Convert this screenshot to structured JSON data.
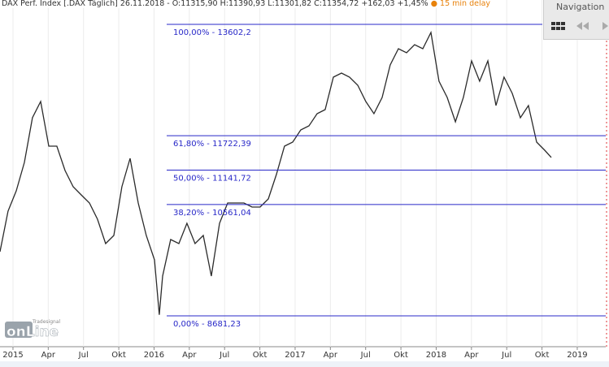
{
  "chart_data": {
    "type": "line",
    "title": "DAX Perf. Index [.DAX Täglich] 26.11.2018 - O:11315,90 H:11390,93 L:11301,82 C:11354,72 +162,03 +1,45%",
    "subtitle": "15 min delay",
    "navigation": "Navigation",
    "brand": "Tradesignal",
    "logo": "onLine",
    "color": "#2b2b2b",
    "level_color": "#2828c8",
    "grid": true,
    "x": [
      2014.908,
      2014.965,
      2015.023,
      2015.081,
      2015.138,
      2015.196,
      2015.254,
      2015.311,
      2015.369,
      2015.427,
      2015.484,
      2015.542,
      2015.599,
      2015.657,
      2015.715,
      2015.772,
      2015.83,
      2015.888,
      2015.945,
      2016.003,
      2016.037,
      2016.061,
      2016.118,
      2016.176,
      2016.233,
      2016.291,
      2016.349,
      2016.406,
      2016.464,
      2016.522,
      2016.579,
      2016.637,
      2016.695,
      2016.752,
      2016.81,
      2016.867,
      2016.925,
      2016.983,
      2017.04,
      2017.098,
      2017.156,
      2017.213,
      2017.271,
      2017.329,
      2017.386,
      2017.444,
      2017.501,
      2017.559,
      2017.617,
      2017.674,
      2017.732,
      2017.79,
      2017.847,
      2017.905,
      2017.963,
      2018.02,
      2018.078,
      2018.136,
      2018.193,
      2018.251,
      2018.308,
      2018.366,
      2018.424,
      2018.481,
      2018.539,
      2018.597,
      2018.654,
      2018.712,
      2018.769,
      2018.816
    ],
    "values": [
      9764,
      10449,
      10792,
      11272,
      12026,
      12300,
      11546,
      11546,
      11135,
      10860,
      10723,
      10586,
      10312,
      9901,
      10038,
      10860,
      11340,
      10586,
      10038,
      9627,
      8699,
      9353,
      9969,
      9901,
      10244,
      9901,
      10038,
      9353,
      10244,
      10586,
      10586,
      10586,
      10518,
      10518,
      10655,
      11066,
      11546,
      11614,
      11820,
      11888,
      12094,
      12163,
      12711,
      12780,
      12711,
      12574,
      12300,
      12094,
      12368,
      12917,
      13191,
      13122,
      13259,
      13191,
      13465,
      12642,
      12368,
      11957,
      12368,
      12985,
      12642,
      12985,
      12231,
      12711,
      12437,
      12026,
      12231,
      11614,
      11477,
      11354.72
    ],
    "xlim": [
      2014.908,
      2019.202
    ],
    "ylim": [
      8160,
      14013
    ],
    "xticks": [
      {
        "value": 2015,
        "label": "2015"
      },
      {
        "value": 2015.25,
        "label": "Apr"
      },
      {
        "value": 2015.5,
        "label": "Jul"
      },
      {
        "value": 2015.75,
        "label": "Okt"
      },
      {
        "value": 2016,
        "label": "2016"
      },
      {
        "value": 2016.25,
        "label": "Apr"
      },
      {
        "value": 2016.5,
        "label": "Jul"
      },
      {
        "value": 2016.75,
        "label": "Okt"
      },
      {
        "value": 2017,
        "label": "2017"
      },
      {
        "value": 2017.25,
        "label": "Apr"
      },
      {
        "value": 2017.5,
        "label": "Jul"
      },
      {
        "value": 2017.75,
        "label": "Okt"
      },
      {
        "value": 2018,
        "label": "2018"
      },
      {
        "value": 2018.25,
        "label": "Apr"
      },
      {
        "value": 2018.5,
        "label": "Jul"
      },
      {
        "value": 2018.75,
        "label": "Okt"
      },
      {
        "value": 2019,
        "label": "2019"
      }
    ],
    "levels": [
      {
        "label": "100,00% - 13602,2",
        "value": 13602.2
      },
      {
        "label": "61,80% - 11722,39",
        "value": 11722.39
      },
      {
        "label": "50,00% - 11141,72",
        "value": 11141.72
      },
      {
        "label": "38,20% - 10561,04",
        "value": 10561.04
      },
      {
        "label": "0,00% - 8681,23",
        "value": 8681.23
      }
    ]
  }
}
